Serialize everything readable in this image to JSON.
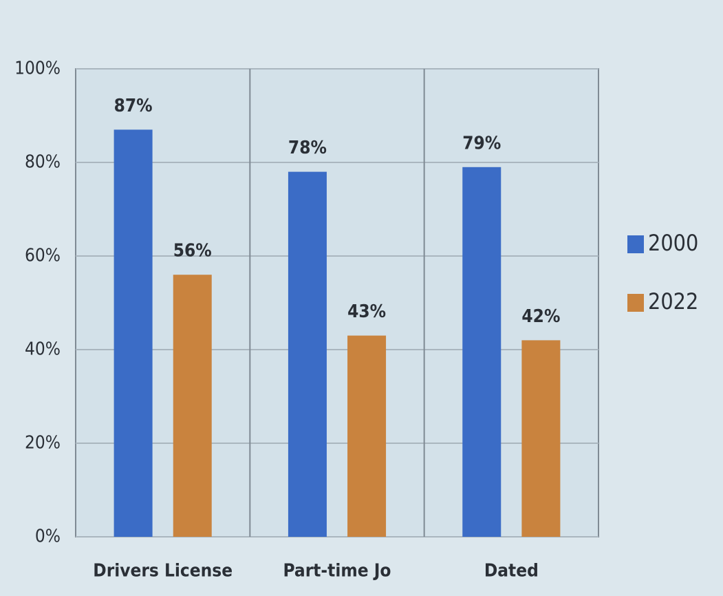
{
  "chart_data": {
    "type": "bar",
    "categories": [
      "Drivers License",
      "Part-time Jo",
      "Dated"
    ],
    "series": [
      {
        "name": "2000",
        "color": "#3b6cc6",
        "values": [
          87,
          78,
          79
        ],
        "value_labels": [
          "87%",
          "78%",
          "79%"
        ]
      },
      {
        "name": "2022",
        "color": "#c9833e",
        "values": [
          56,
          43,
          42
        ],
        "value_labels": [
          "56%",
          "43%",
          "42%"
        ]
      }
    ],
    "ylim": [
      0,
      100
    ],
    "yticks": [
      {
        "value": 0,
        "label": "0%"
      },
      {
        "value": 20,
        "label": "20%"
      },
      {
        "value": 40,
        "label": "40%"
      },
      {
        "value": 60,
        "label": "60%"
      },
      {
        "value": 80,
        "label": "80%"
      },
      {
        "value": 100,
        "label": "100%"
      }
    ],
    "grid": true,
    "legend": "right"
  }
}
